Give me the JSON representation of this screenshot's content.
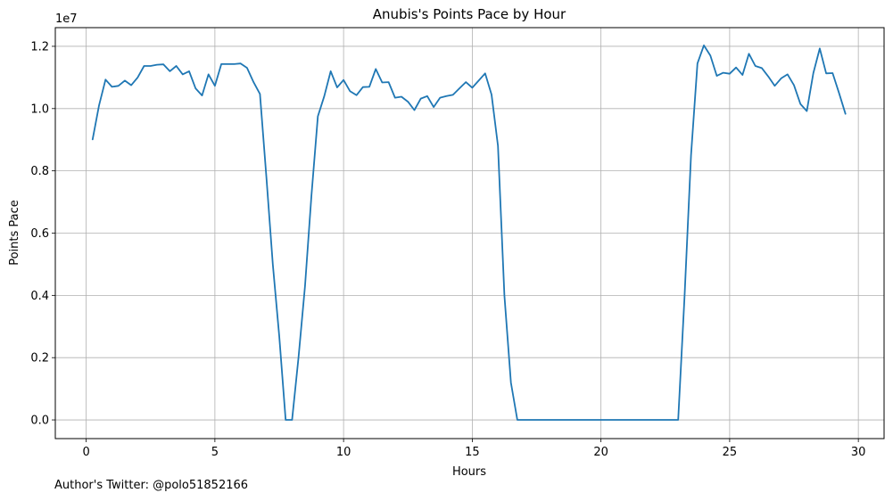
{
  "chart_data": {
    "type": "line",
    "title": "Anubis's Points Pace by Hour",
    "xlabel": "Hours",
    "ylabel": "Points Pace",
    "y_offset_text": "1e7",
    "xlim": [
      -1.2,
      31.0
    ],
    "ylim": [
      -0.06,
      1.26
    ],
    "x_ticks": [
      0,
      5,
      10,
      15,
      20,
      25,
      30
    ],
    "y_ticks": [
      0.0,
      0.2,
      0.4,
      0.6,
      0.8,
      1.0,
      1.2
    ],
    "x_tick_labels": [
      "0",
      "5",
      "10",
      "15",
      "20",
      "25",
      "30"
    ],
    "y_tick_labels": [
      "0.0",
      "0.2",
      "0.4",
      "0.6",
      "0.8",
      "1.0",
      "1.2"
    ],
    "grid": true,
    "line_color": "#1f77b4",
    "series": [
      {
        "x": [
          0.25,
          0.5,
          0.75,
          1.0,
          1.25,
          1.5,
          1.75,
          2.0,
          2.25,
          2.5,
          2.75,
          3.0,
          3.25,
          3.5,
          3.75,
          4.0,
          4.25,
          4.5,
          4.75,
          5.0,
          5.25,
          5.5,
          5.75,
          6.0,
          6.25,
          6.5,
          6.75,
          7.0,
          7.25,
          7.5,
          7.75,
          8.0,
          8.25,
          8.5,
          8.75,
          9.0,
          9.25,
          9.5,
          9.75,
          10.0,
          10.25,
          10.5,
          10.75,
          11.0,
          11.25,
          11.5,
          11.75,
          12.0,
          12.25,
          12.5,
          12.75,
          13.0,
          13.25,
          13.5,
          13.75,
          14.0,
          14.25,
          14.5,
          14.75,
          15.0,
          15.25,
          15.5,
          15.75,
          16.0,
          16.25,
          16.5,
          16.75,
          17.0,
          17.5,
          18.0,
          18.5,
          19.0,
          19.5,
          20.0,
          20.5,
          21.0,
          21.5,
          22.0,
          22.5,
          23.0,
          23.25,
          23.5,
          23.75,
          24.0,
          24.25,
          24.5,
          24.75,
          25.0,
          25.25,
          25.5,
          25.75,
          26.0,
          26.25,
          26.5,
          26.75,
          27.0,
          27.25,
          27.5,
          27.75,
          28.0,
          28.25,
          28.5,
          28.75,
          29.0,
          29.25,
          29.5
        ],
        "y": [
          0.901,
          1.01,
          1.093,
          1.07,
          1.073,
          1.09,
          1.075,
          1.1,
          1.137,
          1.137,
          1.141,
          1.142,
          1.12,
          1.137,
          1.11,
          1.12,
          1.065,
          1.042,
          1.11,
          1.073,
          1.143,
          1.143,
          1.143,
          1.145,
          1.131,
          1.085,
          1.047,
          0.78,
          0.5,
          0.27,
          0.0,
          0.0,
          0.2,
          0.43,
          0.72,
          0.975,
          1.04,
          1.12,
          1.068,
          1.092,
          1.056,
          1.043,
          1.069,
          1.07,
          1.127,
          1.084,
          1.085,
          1.035,
          1.038,
          1.022,
          0.995,
          1.032,
          1.04,
          1.005,
          1.035,
          1.04,
          1.044,
          1.065,
          1.085,
          1.067,
          1.09,
          1.113,
          1.045,
          0.88,
          0.4,
          0.12,
          0.0,
          0.0,
          0.0,
          0.0,
          0.0,
          0.0,
          0.0,
          0.0,
          0.0,
          0.0,
          0.0,
          0.0,
          0.0,
          0.0,
          0.4,
          0.85,
          1.145,
          1.203,
          1.17,
          1.105,
          1.115,
          1.112,
          1.132,
          1.108,
          1.176,
          1.137,
          1.13,
          1.103,
          1.073,
          1.097,
          1.11,
          1.075,
          1.015,
          0.992,
          1.114,
          1.193,
          1.113,
          1.114,
          1.05,
          0.983
        ]
      }
    ]
  },
  "footer": {
    "twitter_text": "Author's Twitter: @polo51852166"
  }
}
